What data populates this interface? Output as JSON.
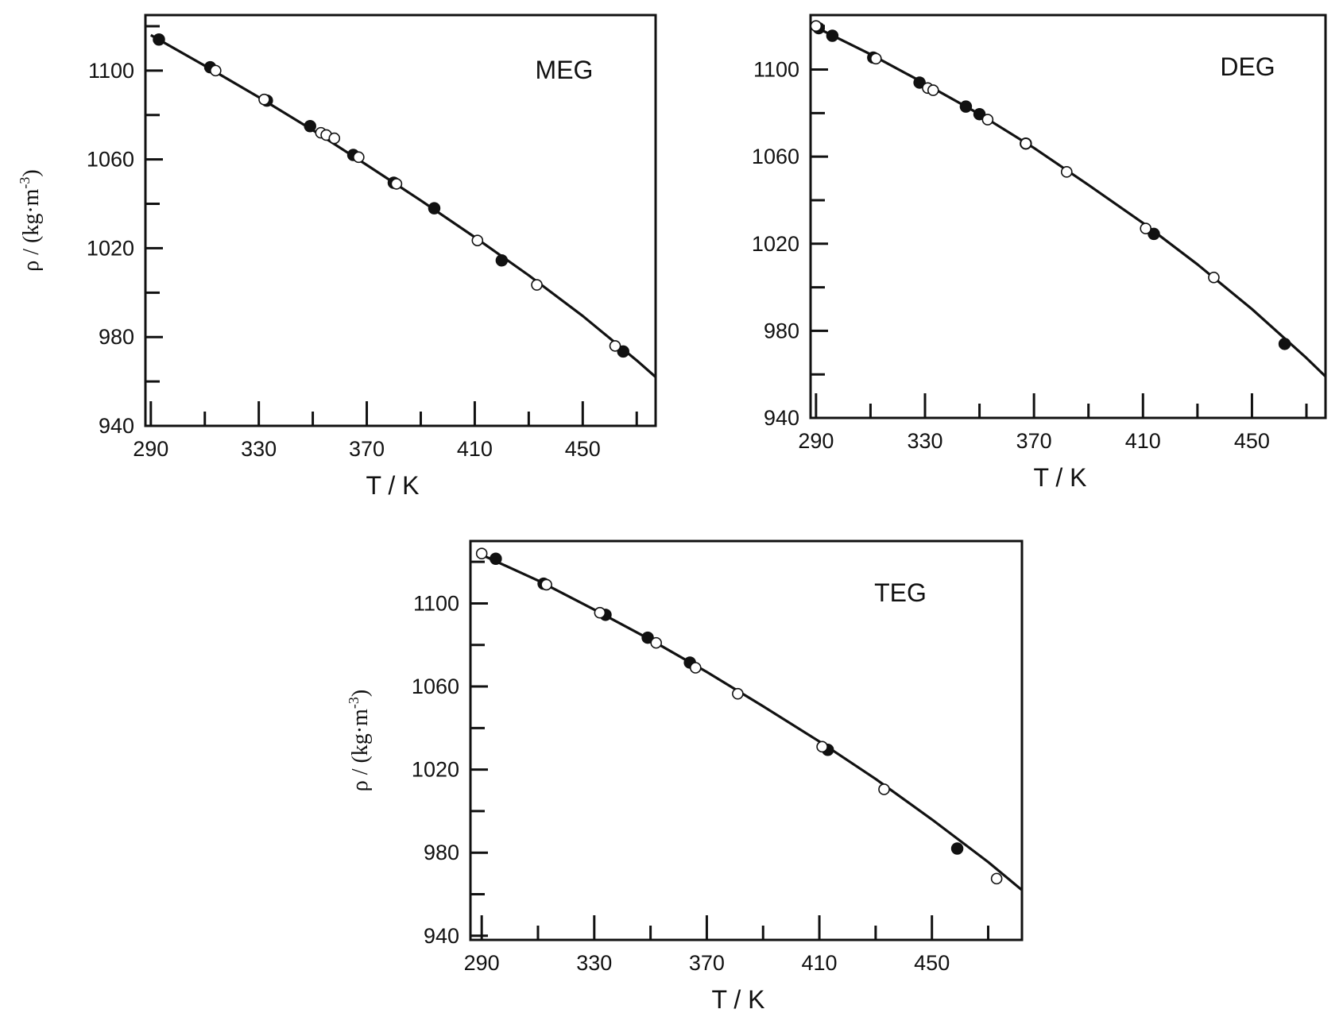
{
  "chart_data": [
    {
      "type": "scatter",
      "title": "MEG",
      "xlabel": "T / K",
      "ylabel": "ρ / (kg·m",
      "ylabel_exponent": "-3",
      "ylabel_suffix": ")",
      "xlim": [
        288,
        477
      ],
      "ylim": [
        940,
        1125
      ],
      "x_ticks": [
        290,
        330,
        370,
        410,
        450
      ],
      "y_ticks": [
        940,
        980,
        1020,
        1060,
        1100
      ],
      "grid": false,
      "legend": "none",
      "colors": {
        "line": "#111111",
        "marker": "#111111",
        "frame": "#111111"
      },
      "fit_curve": {
        "x": [
          290,
          310,
          330,
          350,
          370,
          390,
          410,
          430,
          450,
          470,
          477
        ],
        "y": [
          1116,
          1102.2,
          1088,
          1073.2,
          1057.5,
          1041.5,
          1025,
          1007.8,
          989.5,
          969.5,
          962
        ]
      },
      "series": [
        {
          "marker": "filled",
          "x": [
            293,
            312,
            333,
            349,
            365,
            380,
            395,
            420,
            465
          ],
          "y": [
            1114,
            1101.5,
            1086.5,
            1075,
            1062,
            1049.5,
            1038,
            1014.5,
            973.5
          ]
        },
        {
          "marker": "open",
          "x": [
            314,
            332,
            353,
            355,
            358,
            367,
            381,
            411,
            433,
            462
          ],
          "y": [
            1100,
            1087,
            1072,
            1071,
            1069.5,
            1061,
            1049,
            1023.5,
            1003.5,
            976
          ]
        }
      ]
    },
    {
      "type": "scatter",
      "title": "DEG",
      "xlabel": "T / K",
      "ylabel": "",
      "xlim": [
        288,
        477
      ],
      "ylim": [
        940,
        1125
      ],
      "x_ticks": [
        290,
        330,
        370,
        410,
        450
      ],
      "y_ticks": [
        940,
        980,
        1020,
        1060,
        1100
      ],
      "grid": false,
      "legend": "none",
      "colors": {
        "line": "#111111",
        "marker": "#111111",
        "frame": "#111111"
      },
      "fit_curve": {
        "x": [
          289,
          310,
          330,
          350,
          370,
          390,
          410,
          430,
          450,
          470,
          477
        ],
        "y": [
          1120,
          1107,
          1093.5,
          1079.5,
          1064,
          1047,
          1029.5,
          1010.5,
          990,
          967.5,
          959
        ]
      },
      "series": [
        {
          "marker": "filled",
          "x": [
            291,
            296,
            311,
            328,
            345,
            350,
            367,
            414,
            462
          ],
          "y": [
            1119,
            1115.5,
            1105.5,
            1094,
            1083,
            1079.5,
            1066,
            1024.5,
            974
          ]
        },
        {
          "marker": "open",
          "x": [
            290,
            312,
            331,
            333,
            353,
            367,
            382,
            411,
            436
          ],
          "y": [
            1120,
            1105,
            1091.5,
            1090.5,
            1077,
            1066,
            1053,
            1027,
            1004.5
          ]
        }
      ]
    },
    {
      "type": "scatter",
      "title": "TEG",
      "xlabel": "T / K",
      "ylabel": "ρ / (kg·m",
      "ylabel_exponent": "-3",
      "ylabel_suffix": ")",
      "xlim": [
        286,
        482
      ],
      "ylim": [
        938,
        1130
      ],
      "x_ticks": [
        290,
        330,
        370,
        410,
        450
      ],
      "y_ticks": [
        940,
        980,
        1020,
        1060,
        1100
      ],
      "grid": false,
      "legend": "none",
      "colors": {
        "line": "#111111",
        "marker": "#111111",
        "frame": "#111111"
      },
      "fit_curve": {
        "x": [
          289,
          310,
          330,
          350,
          370,
          390,
          410,
          430,
          450,
          470,
          482
        ],
        "y": [
          1124,
          1111,
          1097,
          1082.5,
          1067,
          1050.5,
          1033.5,
          1015.5,
          996,
          975.5,
          962
        ]
      },
      "series": [
        {
          "marker": "filled",
          "x": [
            295,
            312,
            334,
            349,
            364,
            413,
            459
          ],
          "y": [
            1121.5,
            1109.5,
            1094.5,
            1083.5,
            1071.5,
            1029.5,
            982
          ]
        },
        {
          "marker": "open",
          "x": [
            290,
            313,
            332,
            352,
            366,
            381,
            411,
            433,
            473
          ],
          "y": [
            1124,
            1109,
            1095.5,
            1081,
            1069,
            1056.5,
            1031,
            1010.5,
            967.5
          ]
        }
      ]
    }
  ]
}
